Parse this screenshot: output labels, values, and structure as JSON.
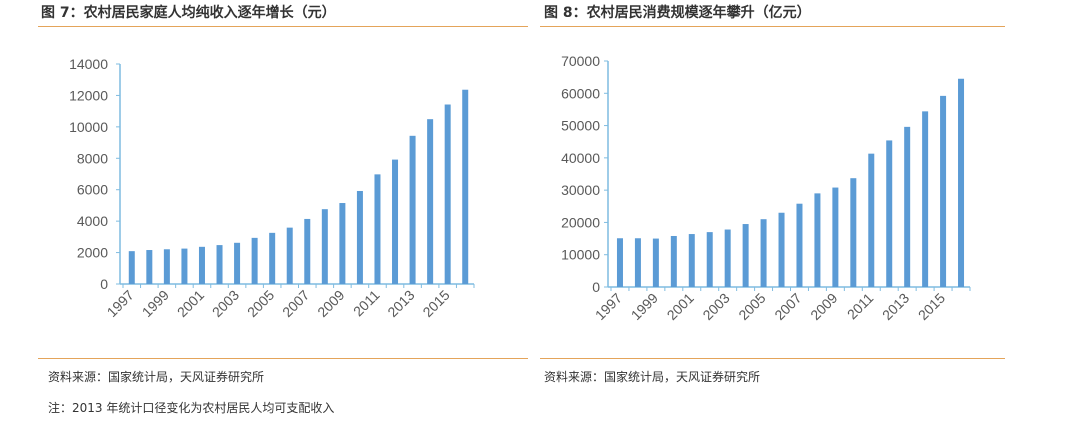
{
  "colors": {
    "bar": "#5b9bd5",
    "axis": "#7fbce0",
    "rule": "#e4a45a"
  },
  "panels": [
    {
      "title": "图 7：农村居民家庭人均纯收入逐年增长（元）",
      "source": "资料来源：国家统计局，天风证券研究所",
      "note": "注：2013 年统计口径变化为农村居民人均可支配收入"
    },
    {
      "title": "图 8：农村居民消费规模逐年攀升（亿元）",
      "source": "资料来源：国家统计局，天风证券研究所"
    }
  ],
  "chart_data": [
    {
      "type": "bar",
      "categories": [
        "1997",
        "1998",
        "1999",
        "2000",
        "2001",
        "2002",
        "2003",
        "2004",
        "2005",
        "2006",
        "2007",
        "2008",
        "2009",
        "2010",
        "2011",
        "2012",
        "2013",
        "2014",
        "2015",
        "2016"
      ],
      "x_tick_labels": [
        "1997",
        "1999",
        "2001",
        "2003",
        "2005",
        "2007",
        "2009",
        "2011",
        "2013",
        "2015"
      ],
      "values": [
        2090,
        2162,
        2210,
        2253,
        2366,
        2476,
        2622,
        2936,
        3255,
        3587,
        4140,
        4761,
        5153,
        5919,
        6977,
        7917,
        9430,
        10489,
        11422,
        12363
      ],
      "ylim": [
        0,
        14000
      ],
      "yticks": [
        0,
        2000,
        4000,
        6000,
        8000,
        10000,
        12000,
        14000
      ],
      "grid": false
    },
    {
      "type": "bar",
      "categories": [
        "1997",
        "1998",
        "1999",
        "2000",
        "2001",
        "2002",
        "2003",
        "2004",
        "2005",
        "2006",
        "2007",
        "2008",
        "2009",
        "2010",
        "2011",
        "2012",
        "2013",
        "2014",
        "2015",
        "2016"
      ],
      "x_tick_labels": [
        "1997",
        "1999",
        "2001",
        "2003",
        "2005",
        "2007",
        "2009",
        "2011",
        "2013",
        "2015"
      ],
      "values": [
        15100,
        15100,
        15000,
        15800,
        16400,
        17000,
        17800,
        19500,
        21000,
        23000,
        25800,
        29000,
        30800,
        33700,
        41300,
        45400,
        49600,
        54400,
        59200,
        64500
      ],
      "ylim": [
        0,
        70000
      ],
      "yticks": [
        0,
        10000,
        20000,
        30000,
        40000,
        50000,
        60000,
        70000
      ],
      "grid": false
    }
  ]
}
